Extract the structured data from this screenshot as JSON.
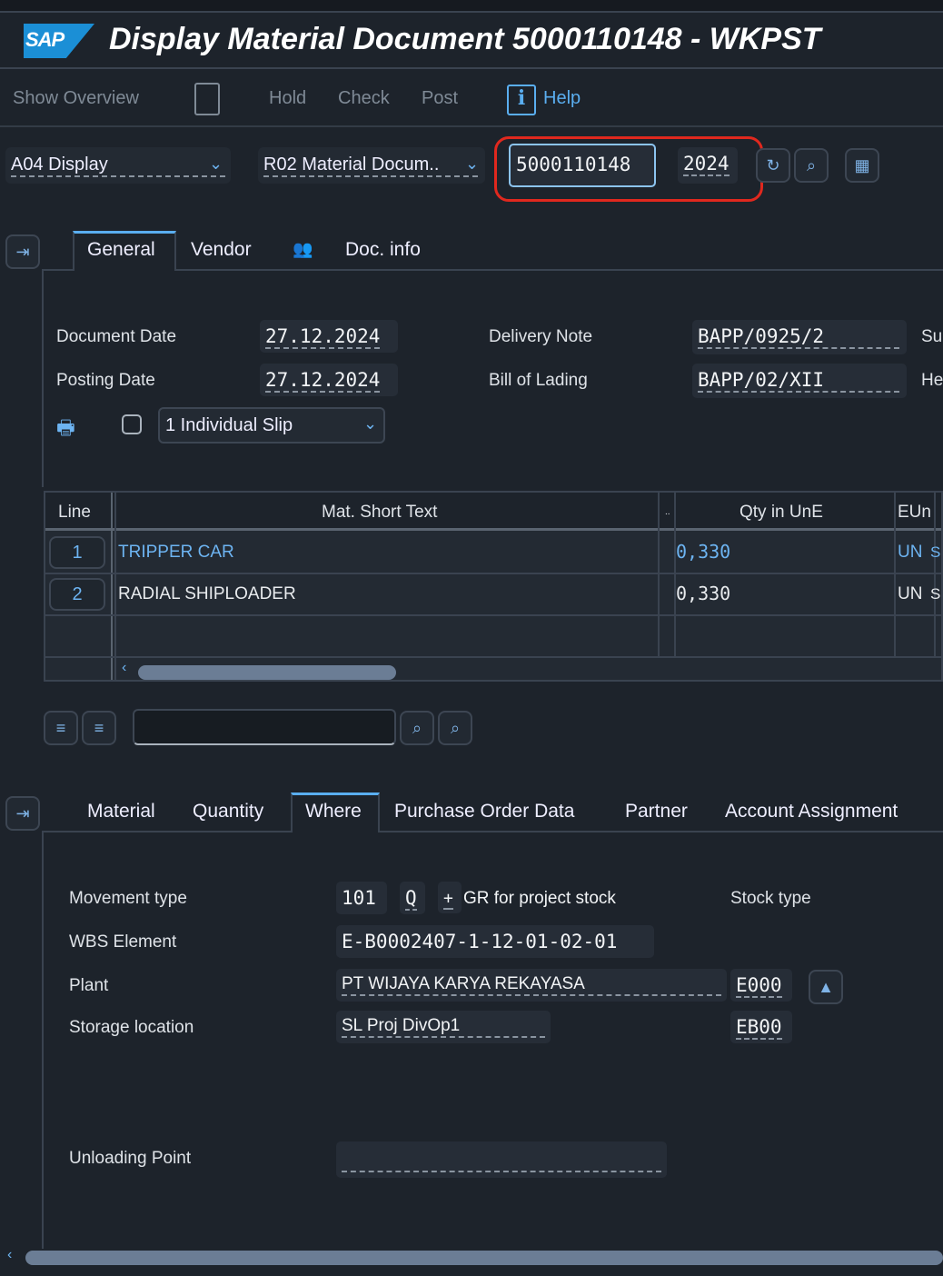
{
  "title": "Display Material Document 5000110148 - WKPST",
  "logo": "SAP",
  "toolbar": {
    "show_overview": "Show Overview",
    "hold": "Hold",
    "check": "Check",
    "post": "Post",
    "help": "Help"
  },
  "selectors": {
    "action": "A04  Display",
    "reference": "R02  Material Docum..",
    "doc_number": "5000110148",
    "year": "2024"
  },
  "header_tabs": [
    "General",
    "Vendor",
    "Doc. info"
  ],
  "general": {
    "document_date_label": "Document Date",
    "document_date": "27.12.2024",
    "posting_date_label": "Posting Date",
    "posting_date": "27.12.2024",
    "delivery_note_label": "Delivery Note",
    "delivery_note": "BAPP/0925/2",
    "bill_of_lading_label": "Bill of Lading",
    "bill_of_lading": "BAPP/02/XII",
    "cut_label_1": "Su",
    "cut_label_2": "He",
    "slip": "1  Individual Slip"
  },
  "items_table": {
    "columns": [
      "Line",
      "Mat. Short Text",
      "..",
      "Qty in UnE",
      "EUn"
    ],
    "rows": [
      {
        "line": "1",
        "text": "TRIPPER CAR",
        "qty": "0,330",
        "eun": "UN",
        "extra": "S"
      },
      {
        "line": "2",
        "text": "RADIAL SHIPLOADER",
        "qty": "0,330",
        "eun": "UN",
        "extra": "S"
      }
    ]
  },
  "detail_tabs": [
    "Material",
    "Quantity",
    "Where",
    "Purchase Order Data",
    "Partner",
    "Account Assignment"
  ],
  "where": {
    "movement_type_label": "Movement type",
    "movement_type": "101",
    "mvt_q": "Q",
    "mvt_sign": "+",
    "mvt_text": "GR for project stock",
    "stock_type_label": "Stock type",
    "wbs_label": "WBS Element",
    "wbs": "E-B0002407-1-12-01-02-01",
    "plant_label": "Plant",
    "plant_name": "PT WIJAYA KARYA REKAYASA",
    "plant": "E000",
    "sloc_label": "Storage location",
    "sloc_name": "SL Proj DivOp1",
    "sloc": "EB00",
    "unloading_label": "Unloading Point",
    "unloading": ""
  },
  "colors": {
    "accent": "#5aaef0",
    "highlight_ring": "#e0281e",
    "background": "#1d232b"
  }
}
